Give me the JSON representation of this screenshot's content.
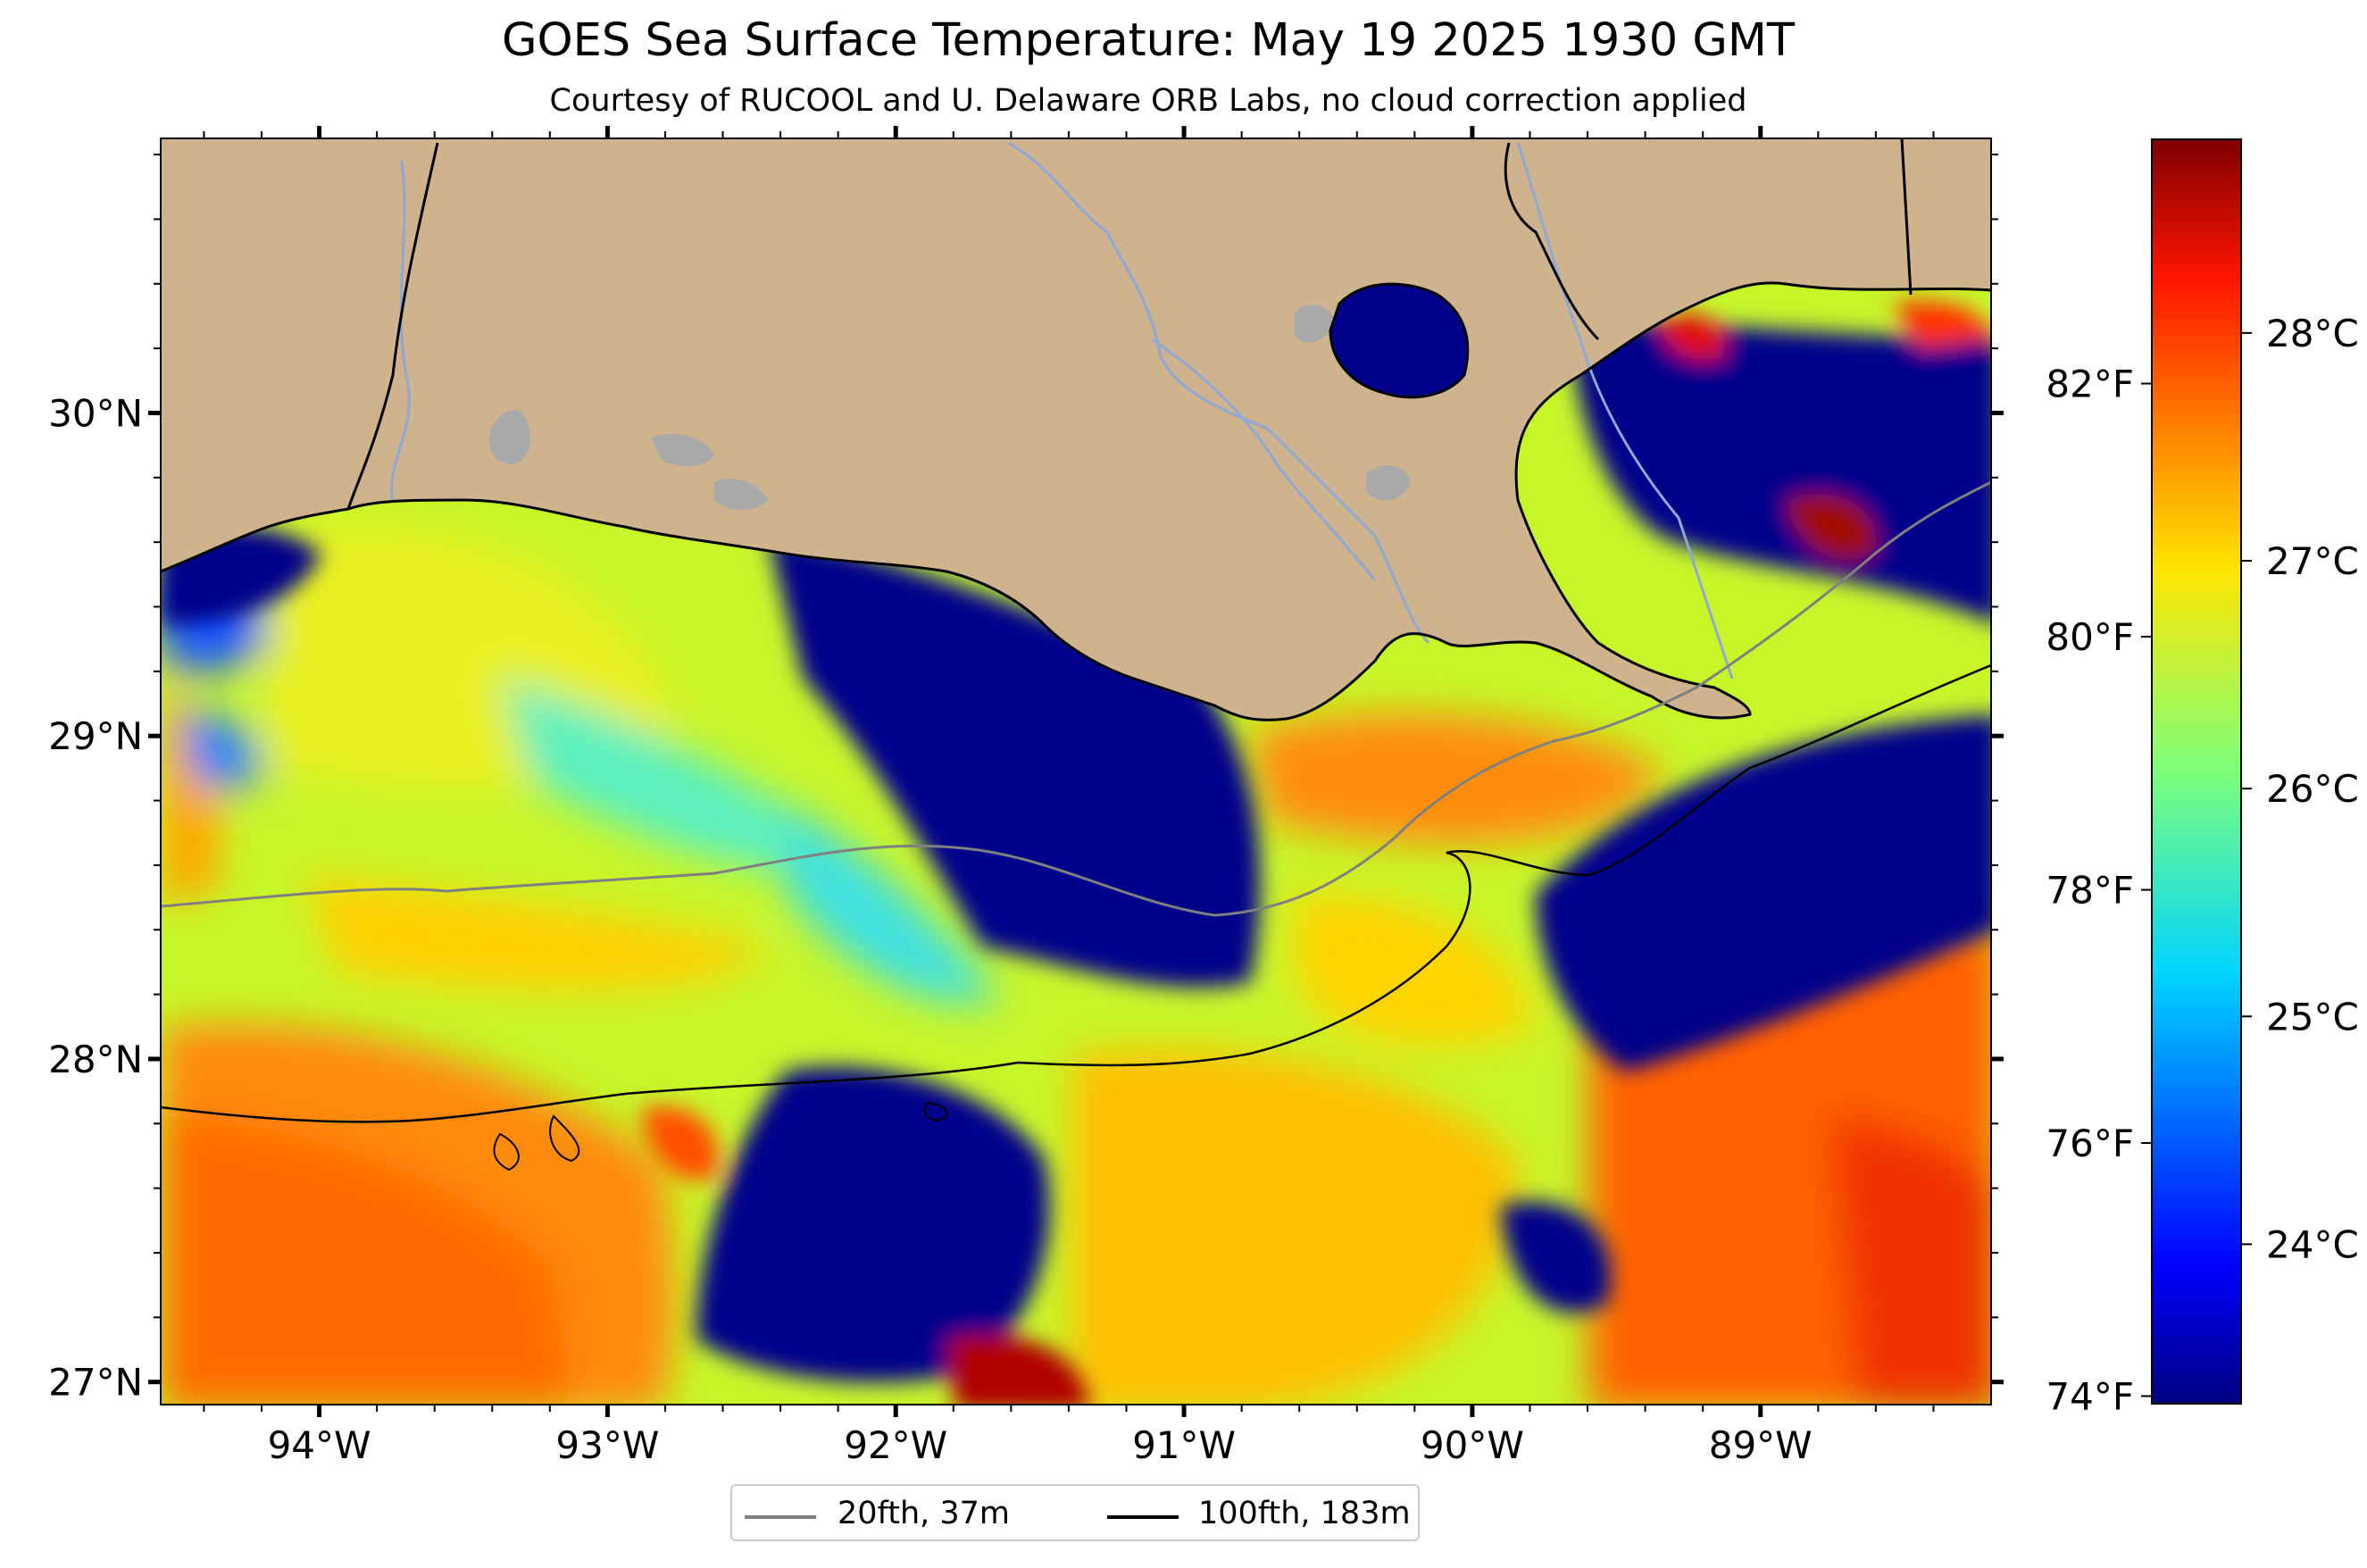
{
  "title": "GOES Sea Surface Temperature: May 19 2025 1930 GMT",
  "subtitle": "Courtesy of RUCOOL and U. Delaware ORB Labs, no cloud correction applied",
  "colors": {
    "land": "#CFB38E",
    "coastline": "#000000",
    "river": "#8FA8D4",
    "lake": "#A9A9A9",
    "isobath_20fth": "#808080",
    "isobath_100fth": "#000000",
    "cold": "#00008B",
    "warm": "#FF5A00"
  },
  "map_extent": {
    "lon": [
      -94.55,
      -88.2
    ],
    "lat": [
      26.93,
      30.85
    ]
  },
  "lon_ticks": [
    {
      "value": -94,
      "label": "94°W"
    },
    {
      "value": -93,
      "label": "93°W"
    },
    {
      "value": -92,
      "label": "92°W"
    },
    {
      "value": -91,
      "label": "91°W"
    },
    {
      "value": -90,
      "label": "90°W"
    },
    {
      "value": -89,
      "label": "89°W"
    }
  ],
  "lat_ticks": [
    {
      "value": 27,
      "label": "27°N"
    },
    {
      "value": 28,
      "label": "28°N"
    },
    {
      "value": 29,
      "label": "29°N"
    },
    {
      "value": 30,
      "label": "30°N"
    }
  ],
  "colorbar": {
    "range_c": [
      23.3,
      28.85
    ],
    "colormap": "jet",
    "celsius_ticks": [
      {
        "value": 24,
        "label": "24°C"
      },
      {
        "value": 25,
        "label": "25°C"
      },
      {
        "value": 26,
        "label": "26°C"
      },
      {
        "value": 27,
        "label": "27°C"
      },
      {
        "value": 28,
        "label": "28°C"
      }
    ],
    "fahrenheit_ticks": [
      {
        "value": 74,
        "label": "74°F"
      },
      {
        "value": 76,
        "label": "76°F"
      },
      {
        "value": 78,
        "label": "78°F"
      },
      {
        "value": 80,
        "label": "80°F"
      },
      {
        "value": 82,
        "label": "82°F"
      }
    ]
  },
  "legend": {
    "placement": "bottom-center",
    "entries": [
      {
        "label": "20fth, 37m",
        "color": "#808080"
      },
      {
        "label": "100fth, 183m",
        "color": "#000000"
      }
    ]
  }
}
